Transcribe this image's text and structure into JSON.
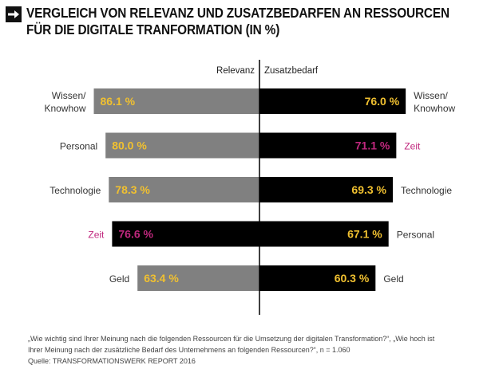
{
  "header": {
    "icon": "arrow-right-icon",
    "title_line1": "VERGLEICH VON RELEVANZ UND ZUSATZBEDARFEN AN RESSOURCEN",
    "title_line2": "FÜR DIE DIGITALE TRANFORMATION (IN %)"
  },
  "chart_data": {
    "type": "bar",
    "title": "VERGLEICH VON RELEVANZ UND ZUSATZBEDARFEN AN RESSOURCEN FÜR DIE DIGITALE TRANFORMATION (IN %)",
    "orientation": "horizontal-diverging",
    "unit": "%",
    "xlim": [
      0,
      100
    ],
    "grid": false,
    "left": {
      "name": "Relevanz",
      "categories": [
        "Wissen/\nKnowhow",
        "Personal",
        "Technologie",
        "Zeit",
        "Geld"
      ],
      "values": [
        86.1,
        80.0,
        78.3,
        76.6,
        63.4
      ],
      "labels": [
        "86.1 %",
        "80.0 %",
        "78.3 %",
        "76.6 %",
        "63.4 %"
      ]
    },
    "right": {
      "name": "Zusatzbedarf",
      "categories": [
        "Wissen/\nKnowhow",
        "Zeit",
        "Technologie",
        "Personal",
        "Geld"
      ],
      "values": [
        76.0,
        71.1,
        69.3,
        67.1,
        60.3
      ],
      "labels": [
        "76.0 %",
        "71.1 %",
        "69.3 %",
        "67.1 %",
        "60.3 %"
      ]
    },
    "highlight_category": "Zeit",
    "colors": {
      "relevanz_bar": "#808080",
      "zusatz_bar": "#000000",
      "highlight_bar": "#000000",
      "value_label": "#f0c030",
      "highlight_label": "#c0287e",
      "category_label": "#333333",
      "axis_line": "#000000"
    }
  },
  "footer": {
    "line1": "„Wie wichtig sind Ihrer Meinung nach die folgenden Ressourcen für die Umsetzung der digitalen Transformation?“, „Wie hoch ist",
    "line2": "Ihrer Meinung nach der zusätzliche Bedarf des Unternehmens an folgenden Ressourcen?“, n = 1.060",
    "source": "Quelle: TRANSFORMATIONSWERK REPORT 2016"
  }
}
